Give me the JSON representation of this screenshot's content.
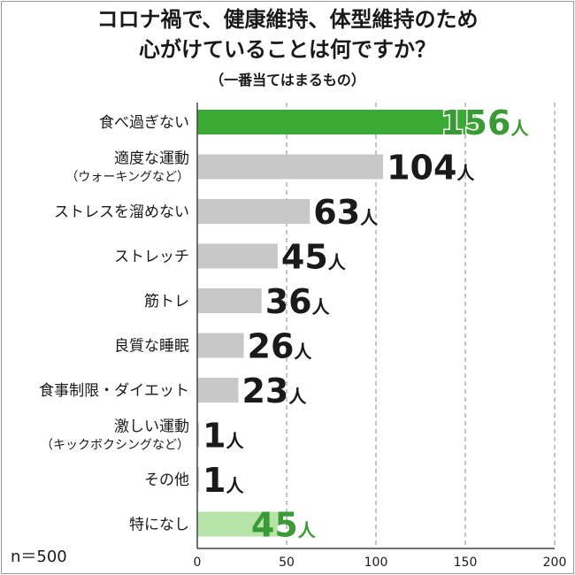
{
  "title_line1": "コロナ禍で、健康維持、体型維持のため",
  "title_line2": "心がけていることは何ですか？",
  "subtitle": "（一番当てはまるもの）",
  "sample_size": "n＝500",
  "colors": {
    "highlight": "#3aaa35",
    "default": "#c8c8c8",
    "none": "#b5e3a8",
    "text": "#1a1a1a",
    "highlight_text": "#3a9a35",
    "grid": "#b0b0b0",
    "axis": "#444444"
  },
  "chart_data": {
    "type": "bar",
    "orientation": "horizontal",
    "title": "コロナ禍で、健康維持、体型維持のため心がけていることは何ですか？",
    "subtitle": "（一番当てはまるもの）",
    "unit": "人",
    "xlim": [
      0,
      200
    ],
    "xticks": [
      0,
      50,
      100,
      150,
      200
    ],
    "grid": true,
    "categories": [
      {
        "label": [
          "食べ過ぎない"
        ],
        "value": 156,
        "style": "highlight"
      },
      {
        "label": [
          "適度な運動",
          "（ウォーキングなど）"
        ],
        "value": 104,
        "style": "default"
      },
      {
        "label": [
          "ストレスを溜めない"
        ],
        "value": 63,
        "style": "default"
      },
      {
        "label": [
          "ストレッチ"
        ],
        "value": 45,
        "style": "default"
      },
      {
        "label": [
          "筋トレ"
        ],
        "value": 36,
        "style": "default"
      },
      {
        "label": [
          "良質な睡眠"
        ],
        "value": 26,
        "style": "default"
      },
      {
        "label": [
          "食事制限・ダイエット"
        ],
        "value": 23,
        "style": "default"
      },
      {
        "label": [
          "激しい運動",
          "（キックボクシングなど）"
        ],
        "value": 1,
        "style": "default"
      },
      {
        "label": [
          "その他"
        ],
        "value": 1,
        "style": "default"
      },
      {
        "label": [
          "特になし"
        ],
        "value": 45,
        "style": "none"
      }
    ]
  }
}
